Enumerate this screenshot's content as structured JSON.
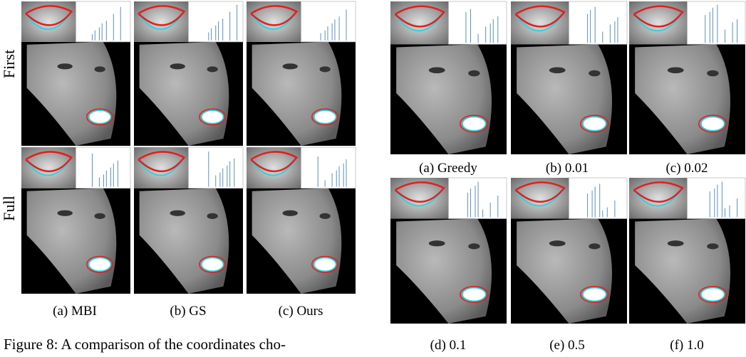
{
  "row_labels": [
    "First",
    "Full"
  ],
  "left_captions": [
    "(a) MBI",
    "(b) GS",
    "(c) Ours"
  ],
  "right_captions": [
    "(a) Greedy",
    "(b) 0.01",
    "(c) 0.02",
    "(d) 0.1",
    "(e) 0.5",
    "(f) 1.0"
  ],
  "figure_caption": "Figure 8: A comparison of the coordinates cho-"
}
